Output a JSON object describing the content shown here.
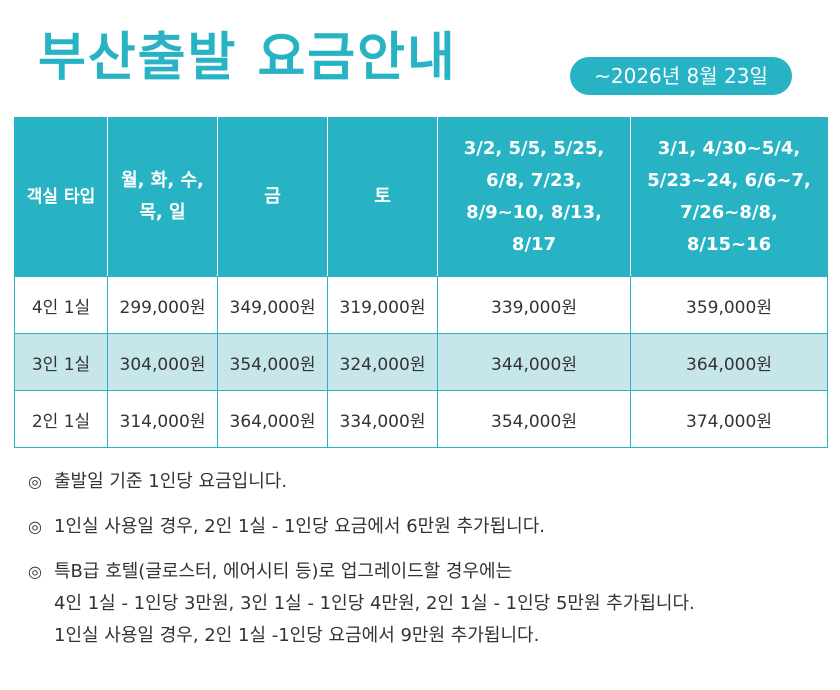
{
  "header": {
    "title": "부산출발 요금안내",
    "date_badge": "~2026년 8월 23일"
  },
  "table": {
    "headers": [
      "객실 타입",
      "월, 화, 수, 목, 일",
      "금",
      "토",
      "3/2, 5/5, 5/25, 6/8, 7/23, 8/9~10, 8/13, 8/17",
      "3/1, 4/30~5/4, 5/23~24, 6/6~7, 7/26~8/8, 8/15~16"
    ],
    "rows": [
      [
        "4인 1실",
        "299,000원",
        "349,000원",
        "319,000원",
        "339,000원",
        "359,000원"
      ],
      [
        "3인 1실",
        "304,000원",
        "354,000원",
        "324,000원",
        "344,000원",
        "364,000원"
      ],
      [
        "2인 1실",
        "314,000원",
        "364,000원",
        "334,000원",
        "354,000원",
        "374,000원"
      ]
    ]
  },
  "notes": {
    "mark": "◎",
    "items": [
      "출발일 기준 1인당 요금입니다.",
      "1인실 사용일 경우, 2인 1실 - 1인당 요금에서 6만원 추가됩니다."
    ],
    "multi": [
      "특B급 호텔(글로스터, 에어시티 등)로 업그레이드할 경우에는",
      "4인 1실 - 1인당 3만원, 3인 1실 - 1인당 4만원, 2인 1실 - 1인당 5만원 추가됩니다.",
      "1인실 사용일 경우, 2인 1실 -1인당 요금에서 9만원 추가됩니다."
    ]
  }
}
